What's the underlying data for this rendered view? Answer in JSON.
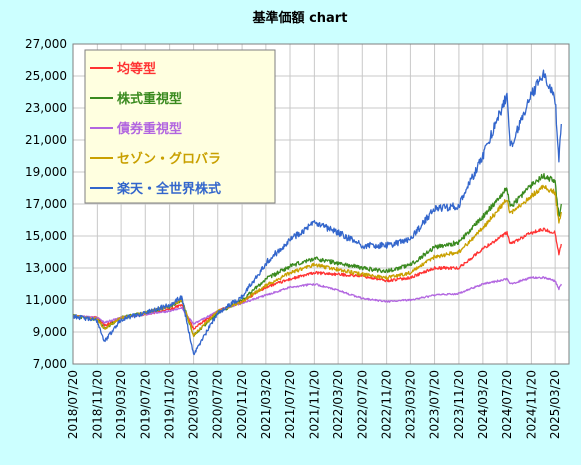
{
  "chart_data": {
    "type": "line",
    "title": "基準価額 chart",
    "xlabel": "",
    "ylabel": "",
    "ylim": [
      7000,
      27000
    ],
    "yticks": [
      "7,000",
      "9,000",
      "11,000",
      "13,000",
      "15,000",
      "17,000",
      "19,000",
      "21,000",
      "23,000",
      "25,000",
      "27,000"
    ],
    "xtick_labels": [
      "2018/07/20",
      "2018/11/20",
      "2019/03/20",
      "2019/07/20",
      "2019/11/20",
      "2020/03/20",
      "2020/07/20",
      "2020/11/20",
      "2021/03/20",
      "2021/07/20",
      "2021/11/20",
      "2022/03/20",
      "2022/07/20",
      "2022/11/20",
      "2023/03/20",
      "2023/07/20",
      "2023/11/20",
      "2024/03/20",
      "2024/07/20",
      "2024/11/20",
      "2025/03/20"
    ],
    "grid": true,
    "legend_position": "top-left",
    "x": [
      "2018/07/20",
      "2018/11/20",
      "2018/12/26",
      "2019/03/20",
      "2019/07/20",
      "2019/11/20",
      "2020/01/20",
      "2020/03/20",
      "2020/07/20",
      "2020/11/20",
      "2021/03/20",
      "2021/07/20",
      "2021/11/20",
      "2022/03/20",
      "2022/07/20",
      "2022/11/20",
      "2023/03/20",
      "2023/07/20",
      "2023/11/20",
      "2024/03/20",
      "2024/07/20",
      "2024/08/05",
      "2024/11/20",
      "2025/01/20",
      "2025/03/20",
      "2025/04/08",
      "2025/04/20"
    ],
    "series": [
      {
        "name": "均等型",
        "color": "#ff3333",
        "values": [
          10000,
          9900,
          9400,
          9900,
          10100,
          10400,
          10700,
          9200,
          10300,
          10900,
          11800,
          12300,
          12700,
          12600,
          12500,
          12200,
          12400,
          13000,
          13000,
          14200,
          15200,
          14500,
          15200,
          15400,
          15200,
          13900,
          14500
        ]
      },
      {
        "name": "株式重視型",
        "color": "#3a8a1f",
        "values": [
          10000,
          9800,
          9200,
          9900,
          10200,
          10600,
          11000,
          8800,
          10200,
          11000,
          12300,
          13100,
          13600,
          13300,
          13000,
          12800,
          13200,
          14300,
          14600,
          16200,
          18000,
          16800,
          18200,
          18800,
          18400,
          16200,
          17000
        ]
      },
      {
        "name": "債券重視型",
        "color": "#b266e0",
        "values": [
          10000,
          9900,
          9600,
          9900,
          10100,
          10300,
          10500,
          9500,
          10300,
          10800,
          11300,
          11800,
          12000,
          11600,
          11100,
          10900,
          11000,
          11300,
          11400,
          12000,
          12300,
          12000,
          12400,
          12400,
          12200,
          11700,
          12000
        ]
      },
      {
        "name": "セゾン・グロバラ",
        "color": "#c9a000",
        "values": [
          10000,
          9800,
          9200,
          9900,
          10200,
          10600,
          11000,
          8800,
          10300,
          10900,
          11900,
          12700,
          13200,
          12900,
          12600,
          12400,
          12700,
          13700,
          14000,
          15500,
          17300,
          16400,
          17500,
          18100,
          17700,
          15800,
          16500
        ]
      },
      {
        "name": "楽天・全世界株式",
        "color": "#3366cc",
        "values": [
          10000,
          9700,
          8400,
          9800,
          10200,
          10700,
          11200,
          7600,
          10200,
          11200,
          13300,
          14800,
          15800,
          15200,
          14400,
          14400,
          14800,
          16700,
          16900,
          20000,
          23800,
          20500,
          23800,
          25100,
          23500,
          19900,
          22000
        ]
      }
    ]
  }
}
